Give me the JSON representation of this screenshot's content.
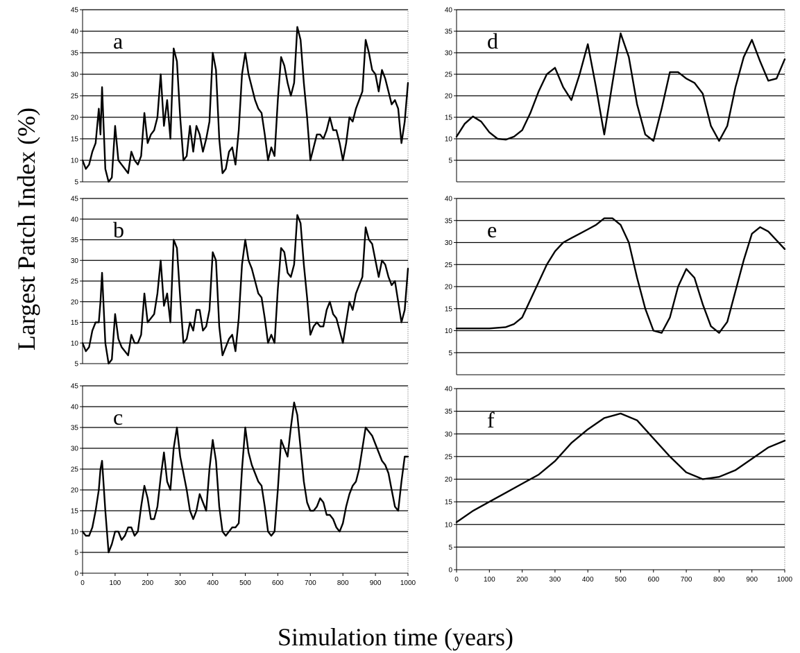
{
  "figure": {
    "ylabel": "Largest Patch Index (%)",
    "xlabel": "Simulation time (years)"
  },
  "chart_data": [
    {
      "type": "line",
      "panel": "a",
      "xlim": [
        0,
        1000
      ],
      "ylim": [
        5,
        45
      ],
      "yticks": [
        5,
        10,
        15,
        20,
        25,
        30,
        35,
        40,
        45
      ],
      "xticks": [],
      "grid": true,
      "series": [
        {
          "x": [
            0,
            10,
            20,
            30,
            40,
            50,
            55,
            60,
            70,
            80,
            90,
            100,
            110,
            120,
            130,
            140,
            150,
            160,
            170,
            180,
            190,
            200,
            210,
            220,
            230,
            240,
            250,
            260,
            270,
            280,
            290,
            300,
            310,
            320,
            330,
            340,
            350,
            360,
            370,
            380,
            390,
            400,
            410,
            420,
            430,
            440,
            450,
            460,
            470,
            480,
            490,
            500,
            510,
            520,
            530,
            540,
            550,
            560,
            570,
            580,
            590,
            600,
            610,
            620,
            630,
            640,
            650,
            660,
            670,
            680,
            690,
            700,
            710,
            720,
            730,
            740,
            750,
            760,
            770,
            780,
            790,
            800,
            810,
            820,
            830,
            840,
            850,
            860,
            870,
            880,
            890,
            900,
            910,
            920,
            930,
            940,
            950,
            960,
            970,
            980,
            990,
            1000
          ],
          "y": [
            10,
            8,
            9,
            12,
            14,
            22,
            16,
            27,
            8,
            5,
            6,
            18,
            10,
            9,
            8,
            7,
            12,
            10,
            9,
            11,
            21,
            14,
            16,
            17,
            20,
            30,
            18,
            24,
            15,
            36,
            33,
            20,
            10,
            11,
            18,
            12,
            18,
            16,
            12,
            15,
            19,
            35,
            31,
            15,
            7,
            8,
            12,
            13,
            9,
            17,
            30,
            35,
            30,
            27,
            24,
            22,
            21,
            16,
            10,
            13,
            11,
            24,
            34,
            32,
            28,
            25,
            28,
            41,
            38,
            28,
            20,
            10,
            13,
            16,
            16,
            15,
            17,
            20,
            17,
            17,
            14,
            10,
            14,
            20,
            19,
            22,
            24,
            26,
            38,
            35,
            31,
            30,
            26,
            31,
            29,
            26,
            23,
            24,
            22,
            14,
            19,
            28
          ]
        }
      ]
    },
    {
      "type": "line",
      "panel": "b",
      "xlim": [
        0,
        1000
      ],
      "ylim": [
        5,
        45
      ],
      "yticks": [
        5,
        10,
        15,
        20,
        25,
        30,
        35,
        40,
        45
      ],
      "xticks": [],
      "grid": true,
      "series": [
        {
          "x": [
            0,
            10,
            20,
            30,
            40,
            50,
            55,
            60,
            70,
            80,
            90,
            100,
            110,
            120,
            130,
            140,
            150,
            160,
            170,
            180,
            190,
            200,
            210,
            220,
            230,
            240,
            250,
            260,
            270,
            280,
            290,
            300,
            310,
            320,
            330,
            340,
            350,
            360,
            370,
            380,
            390,
            400,
            410,
            420,
            430,
            440,
            450,
            460,
            470,
            480,
            490,
            500,
            510,
            520,
            530,
            540,
            550,
            560,
            570,
            580,
            590,
            600,
            610,
            620,
            630,
            640,
            650,
            660,
            670,
            680,
            690,
            700,
            710,
            720,
            730,
            740,
            750,
            760,
            770,
            780,
            790,
            800,
            810,
            820,
            830,
            840,
            850,
            860,
            870,
            880,
            890,
            900,
            910,
            920,
            930,
            940,
            950,
            960,
            970,
            980,
            990,
            1000
          ],
          "y": [
            10,
            8,
            9,
            13,
            15,
            15,
            20,
            27,
            10,
            5,
            6,
            17,
            11,
            9,
            8,
            7,
            12,
            10,
            10,
            12,
            22,
            15,
            16,
            17,
            22,
            30,
            19,
            22,
            15,
            35,
            33,
            21,
            10,
            11,
            15,
            13,
            18,
            18,
            13,
            14,
            18,
            32,
            30,
            14,
            7,
            9,
            11,
            12,
            8,
            16,
            29,
            35,
            30,
            28,
            25,
            22,
            21,
            16,
            10,
            12,
            10,
            23,
            33,
            32,
            27,
            26,
            29,
            41,
            39,
            29,
            21,
            12,
            14,
            15,
            14,
            14,
            18,
            20,
            17,
            16,
            13,
            10,
            15,
            20,
            18,
            22,
            24,
            26,
            38,
            35,
            34,
            30,
            26,
            30,
            29,
            26,
            24,
            25,
            20,
            15,
            18,
            28
          ]
        }
      ]
    },
    {
      "type": "line",
      "panel": "c",
      "xlim": [
        0,
        1000
      ],
      "ylim": [
        0,
        45
      ],
      "yticks": [
        0,
        5,
        10,
        15,
        20,
        25,
        30,
        35,
        40,
        45
      ],
      "xticks": [
        0,
        100,
        200,
        300,
        400,
        500,
        600,
        700,
        800,
        900,
        1000
      ],
      "grid": true,
      "series": [
        {
          "x": [
            0,
            10,
            20,
            30,
            40,
            50,
            55,
            60,
            70,
            80,
            90,
            100,
            110,
            120,
            130,
            140,
            150,
            160,
            170,
            180,
            190,
            200,
            210,
            220,
            230,
            240,
            250,
            260,
            270,
            280,
            290,
            300,
            310,
            320,
            330,
            340,
            350,
            360,
            370,
            380,
            390,
            400,
            410,
            420,
            430,
            440,
            450,
            460,
            470,
            480,
            490,
            500,
            510,
            520,
            530,
            540,
            550,
            560,
            570,
            580,
            590,
            600,
            610,
            620,
            630,
            640,
            650,
            660,
            670,
            680,
            690,
            700,
            710,
            720,
            730,
            740,
            750,
            760,
            770,
            780,
            790,
            800,
            810,
            820,
            830,
            840,
            850,
            860,
            870,
            880,
            890,
            900,
            910,
            920,
            930,
            940,
            950,
            960,
            970,
            980,
            990,
            1000
          ],
          "y": [
            10,
            9,
            9,
            11,
            15,
            20,
            25,
            27,
            15,
            5,
            7,
            10,
            10,
            8,
            9,
            11,
            11,
            9,
            10,
            16,
            21,
            18,
            13,
            13,
            16,
            23,
            29,
            22,
            20,
            30,
            35,
            28,
            24,
            20,
            15,
            13,
            15,
            19,
            17,
            15,
            25,
            32,
            27,
            16,
            10,
            9,
            10,
            11,
            11,
            12,
            25,
            35,
            29,
            26,
            24,
            22,
            21,
            16,
            10,
            9,
            10,
            20,
            32,
            30,
            28,
            35,
            41,
            38,
            30,
            22,
            17,
            15,
            15,
            16,
            18,
            17,
            14,
            14,
            13,
            11,
            10,
            12,
            16,
            19,
            21,
            22,
            25,
            30,
            35,
            34,
            33,
            31,
            29,
            27,
            26,
            24,
            20,
            16,
            15,
            22,
            28,
            28
          ]
        }
      ]
    },
    {
      "type": "line",
      "panel": "d",
      "xlim": [
        0,
        1000
      ],
      "ylim": [
        0,
        40
      ],
      "yticks": [
        5,
        10,
        15,
        20,
        25,
        30,
        35,
        40
      ],
      "xticks": [],
      "grid": true,
      "series": [
        {
          "x": [
            0,
            25,
            50,
            75,
            100,
            125,
            150,
            175,
            200,
            225,
            250,
            275,
            300,
            325,
            350,
            375,
            400,
            425,
            450,
            475,
            500,
            525,
            550,
            575,
            600,
            625,
            650,
            675,
            700,
            725,
            750,
            775,
            800,
            825,
            850,
            875,
            900,
            925,
            950,
            975,
            1000
          ],
          "y": [
            10.5,
            13.5,
            15.2,
            14,
            11.5,
            10,
            9.8,
            10.5,
            12,
            16,
            21,
            25,
            26.5,
            22,
            19,
            25,
            32,
            22,
            11,
            23,
            34.5,
            29,
            18,
            11,
            9.5,
            17,
            25.5,
            25.5,
            24,
            23,
            20.5,
            13,
            9.5,
            13,
            22,
            29,
            33,
            28,
            23.5,
            24,
            28.5
          ]
        }
      ]
    },
    {
      "type": "line",
      "panel": "e",
      "xlim": [
        0,
        1000
      ],
      "ylim": [
        0,
        40
      ],
      "yticks": [
        5,
        10,
        15,
        20,
        25,
        30,
        35,
        40
      ],
      "xticks": [],
      "grid": true,
      "series": [
        {
          "x": [
            0,
            50,
            100,
            150,
            175,
            200,
            225,
            250,
            275,
            300,
            325,
            350,
            375,
            400,
            425,
            450,
            475,
            500,
            525,
            550,
            575,
            600,
            625,
            650,
            675,
            700,
            725,
            750,
            775,
            800,
            825,
            850,
            875,
            900,
            925,
            950,
            975,
            1000
          ],
          "y": [
            10.5,
            10.5,
            10.5,
            10.8,
            11.5,
            13,
            17,
            21,
            25,
            28,
            30,
            31,
            32,
            33,
            34,
            35.5,
            35.5,
            34,
            30,
            22,
            15,
            10,
            9.5,
            13,
            20,
            24,
            22,
            16,
            11,
            9.5,
            12,
            19,
            26,
            32,
            33.5,
            32.5,
            30.5,
            28.5
          ]
        }
      ]
    },
    {
      "type": "line",
      "panel": "f",
      "xlim": [
        0,
        1000
      ],
      "ylim": [
        0,
        40
      ],
      "yticks": [
        0,
        5,
        10,
        15,
        20,
        25,
        30,
        35,
        40
      ],
      "xticks": [
        0,
        100,
        200,
        300,
        400,
        500,
        600,
        700,
        800,
        900,
        1000
      ],
      "grid": true,
      "series": [
        {
          "x": [
            0,
            50,
            100,
            150,
            200,
            250,
            300,
            350,
            400,
            450,
            500,
            550,
            600,
            650,
            700,
            750,
            800,
            850,
            900,
            950,
            1000
          ],
          "y": [
            10.5,
            13,
            15,
            17,
            19,
            21,
            24,
            28,
            31,
            33.5,
            34.5,
            33,
            29,
            25,
            21.5,
            20,
            20.5,
            22,
            24.5,
            27,
            28.5
          ]
        }
      ]
    }
  ]
}
